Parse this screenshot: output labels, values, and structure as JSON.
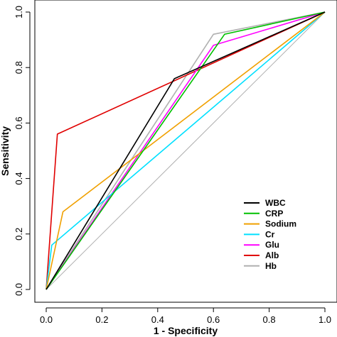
{
  "chart_data": {
    "type": "line",
    "title": "",
    "xlabel": "1 - Specificity",
    "ylabel": "Sensitivity",
    "xlim": [
      0,
      1
    ],
    "ylim": [
      0,
      1
    ],
    "xticks": [
      "0.0",
      "0.2",
      "0.4",
      "0.6",
      "0.8",
      "1.0"
    ],
    "yticks": [
      "0.0",
      "0.2",
      "0.4",
      "0.6",
      "0.8",
      "1.0"
    ],
    "grid": false,
    "legend_position": "bottom-right",
    "reference_line": {
      "x": [
        0,
        1
      ],
      "y": [
        0,
        1
      ],
      "color": "#b0b0b0"
    },
    "series": [
      {
        "name": "WBC",
        "color": "#000000",
        "x": [
          0,
          0.46,
          1
        ],
        "y": [
          0,
          0.76,
          1
        ]
      },
      {
        "name": "CRP",
        "color": "#00c000",
        "x": [
          0,
          0.64,
          1
        ],
        "y": [
          0,
          0.92,
          1
        ]
      },
      {
        "name": "Sodium",
        "color": "#f0a000",
        "x": [
          0,
          0.06,
          1
        ],
        "y": [
          0,
          0.28,
          1
        ]
      },
      {
        "name": "Cr",
        "color": "#00e0ff",
        "x": [
          0,
          0.02,
          1
        ],
        "y": [
          0,
          0.16,
          1
        ]
      },
      {
        "name": "Glu",
        "color": "#ff00ff",
        "x": [
          0,
          0.6,
          1
        ],
        "y": [
          0,
          0.88,
          1
        ]
      },
      {
        "name": "Alb",
        "color": "#e00000",
        "x": [
          0,
          0.04,
          1
        ],
        "y": [
          0,
          0.56,
          1
        ]
      },
      {
        "name": "Hb",
        "color": "#b0b0b0",
        "x": [
          0,
          0.6,
          1
        ],
        "y": [
          0,
          0.92,
          1
        ]
      }
    ]
  }
}
